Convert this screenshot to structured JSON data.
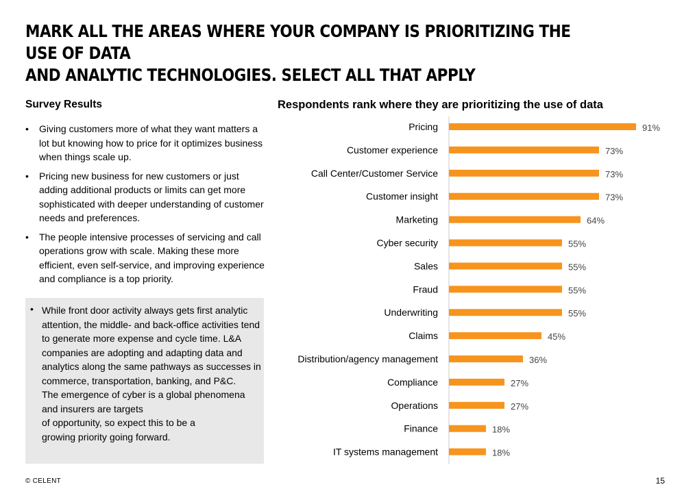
{
  "header": {
    "title": "MARK ALL THE AREAS WHERE YOUR COMPANY IS PRIORITIZING THE USE OF DATA\nAND ANALYTIC TECHNOLOGIES. SELECT ALL THAT APPLY"
  },
  "survey": {
    "heading": "Survey Results",
    "bullets": [
      "Giving customers more of what they want matters a lot but knowing how to price for it optimizes business when things scale up.",
      "Pricing new business for new customers or just adding additional products or limits can get more sophisticated with deeper understanding of customer needs and preferences.",
      "The people intensive processes of servicing and call operations grow with scale.  Making these more efficient, even self-service, and improving experience and compliance is a top priority."
    ],
    "bullet_symbol": "•",
    "callout": "While front door activity always gets first analytic attention, the middle- and back-office activities tend to generate more expense and cycle time.  L&A companies are adopting and adapting data and analytics along the same pathways as successes in commerce, transportation, banking, and P&C.\nThe emergence of cyber is a global phenomena and insurers are targets\nof opportunity, so expect this to be a\ngrowing priority going forward."
  },
  "chart_data": {
    "type": "bar",
    "orientation": "horizontal",
    "title": "Respondents rank where they are prioritizing the use of data",
    "categories": [
      "Pricing",
      "Customer experience",
      "Call Center/Customer Service",
      "Customer insight",
      "Marketing",
      "Cyber security",
      "Sales",
      "Fraud",
      "Underwriting",
      "Claims",
      "Distribution/agency management",
      "Compliance",
      "Operations",
      "Finance",
      "IT systems management"
    ],
    "values": [
      91,
      73,
      73,
      73,
      64,
      55,
      55,
      55,
      55,
      45,
      36,
      27,
      27,
      18,
      18
    ],
    "labels": [
      "91%",
      "73%",
      "73%",
      "73%",
      "64%",
      "55%",
      "55%",
      "55%",
      "55%",
      "45%",
      "36%",
      "27%",
      "27%",
      "18%",
      "18%"
    ],
    "xlim": [
      0,
      100
    ],
    "xlabel": "",
    "ylabel": "",
    "bar_color": "#F7941D",
    "axis_color": "#c8c8c8",
    "grid": false
  },
  "footer": {
    "copyright": "© CELENT",
    "page_number": "15"
  }
}
